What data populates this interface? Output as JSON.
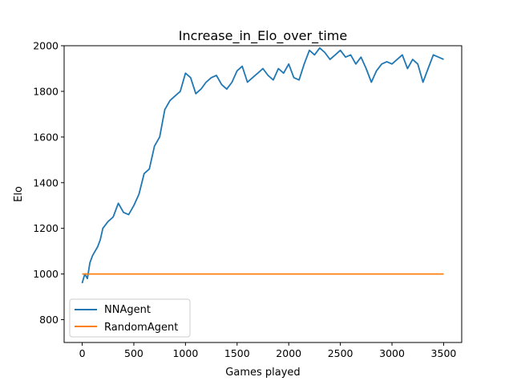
{
  "chart_data": {
    "type": "line",
    "title": "Increase_in_Elo_over_time",
    "xlabel": "Games played",
    "ylabel": "Elo",
    "xlim": [
      -175,
      3675
    ],
    "ylim": [
      700,
      2000
    ],
    "xticks": [
      0,
      500,
      1000,
      1500,
      2000,
      2500,
      3000,
      3500
    ],
    "yticks": [
      800,
      1000,
      1200,
      1400,
      1600,
      1800,
      2000
    ],
    "xtick_labels": [
      "0",
      "500",
      "1000",
      "1500",
      "2000",
      "2500",
      "3000",
      "3500"
    ],
    "ytick_labels": [
      "800",
      "1000",
      "1200",
      "1400",
      "1600",
      "1800",
      "2000"
    ],
    "grid": false,
    "legend_position": "lower-left",
    "series": [
      {
        "name": "NNAgent",
        "color": "#1f77b4",
        "x": [
          0,
          25,
          50,
          75,
          100,
          125,
          150,
          175,
          200,
          250,
          300,
          350,
          400,
          450,
          500,
          550,
          600,
          650,
          700,
          750,
          800,
          850,
          900,
          950,
          1000,
          1050,
          1100,
          1150,
          1200,
          1250,
          1300,
          1350,
          1400,
          1450,
          1500,
          1550,
          1600,
          1650,
          1700,
          1750,
          1800,
          1850,
          1900,
          1950,
          2000,
          2050,
          2100,
          2150,
          2200,
          2250,
          2300,
          2350,
          2400,
          2450,
          2500,
          2550,
          2600,
          2650,
          2700,
          2750,
          2800,
          2850,
          2900,
          2950,
          3000,
          3050,
          3100,
          3150,
          3200,
          3250,
          3300,
          3350,
          3400,
          3450,
          3500
        ],
        "values": [
          960,
          1000,
          980,
          1050,
          1080,
          1100,
          1120,
          1150,
          1200,
          1230,
          1250,
          1310,
          1270,
          1260,
          1300,
          1350,
          1440,
          1460,
          1560,
          1600,
          1720,
          1760,
          1780,
          1800,
          1880,
          1860,
          1790,
          1810,
          1840,
          1860,
          1870,
          1830,
          1810,
          1840,
          1890,
          1910,
          1840,
          1860,
          1880,
          1900,
          1870,
          1850,
          1900,
          1880,
          1920,
          1860,
          1850,
          1920,
          1980,
          1960,
          1990,
          1970,
          1940,
          1960,
          1980,
          1950,
          1960,
          1920,
          1950,
          1900,
          1840,
          1890,
          1920,
          1930,
          1920,
          1940,
          1960,
          1900,
          1940,
          1920,
          1840,
          1900,
          1960,
          1950,
          1940
        ]
      },
      {
        "name": "RandomAgent",
        "color": "#ff7f0e",
        "x": [
          0,
          3500
        ],
        "values": [
          1000,
          1000
        ]
      }
    ]
  }
}
